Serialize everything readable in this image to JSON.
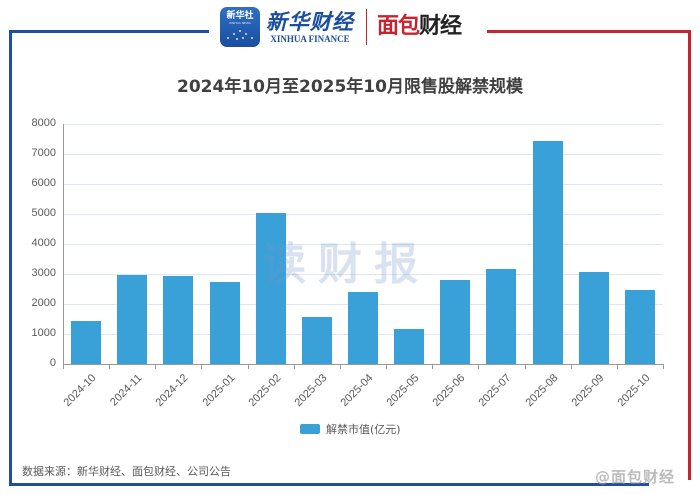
{
  "header": {
    "xinhua_icon_text": "新华社",
    "xinhua_icon_sub": "XINHUA NEWS",
    "xinhua_finance_cn": "新华财经",
    "xinhua_finance_en": "XINHUA FINANCE",
    "mianbao_logo_red": "面包",
    "mianbao_logo_dark": "财经"
  },
  "colors": {
    "bar": "#3aa0d8",
    "frame_blue": "#1f4fa0",
    "frame_red": "#c8242f",
    "gridline": "#dde6f2"
  },
  "chart_data": {
    "type": "bar",
    "title": "2024年10月至2025年10月限售股解禁规模",
    "xlabel": "",
    "ylabel": "",
    "categories": [
      "2024-10",
      "2024-11",
      "2024-12",
      "2025-01",
      "2025-02",
      "2025-03",
      "2025-04",
      "2025-05",
      "2025-06",
      "2025-07",
      "2025-08",
      "2025-09",
      "2025-10"
    ],
    "series": [
      {
        "name": "解禁市值(亿元)",
        "values": [
          1430,
          2980,
          2950,
          2720,
          5040,
          1570,
          2390,
          1170,
          2800,
          3160,
          7430,
          3060,
          2480
        ]
      }
    ],
    "ylim": [
      0,
      8000
    ],
    "yticks": [
      "0",
      "1000",
      "2000",
      "3000",
      "4000",
      "5000",
      "6000",
      "7000",
      "8000"
    ],
    "grid": true,
    "legend_position": "bottom"
  },
  "watermark": "读财报",
  "footer": {
    "source": "数据来源：新华财经、面包财经、公司公告",
    "weibo_watermark": "@面包财经"
  }
}
